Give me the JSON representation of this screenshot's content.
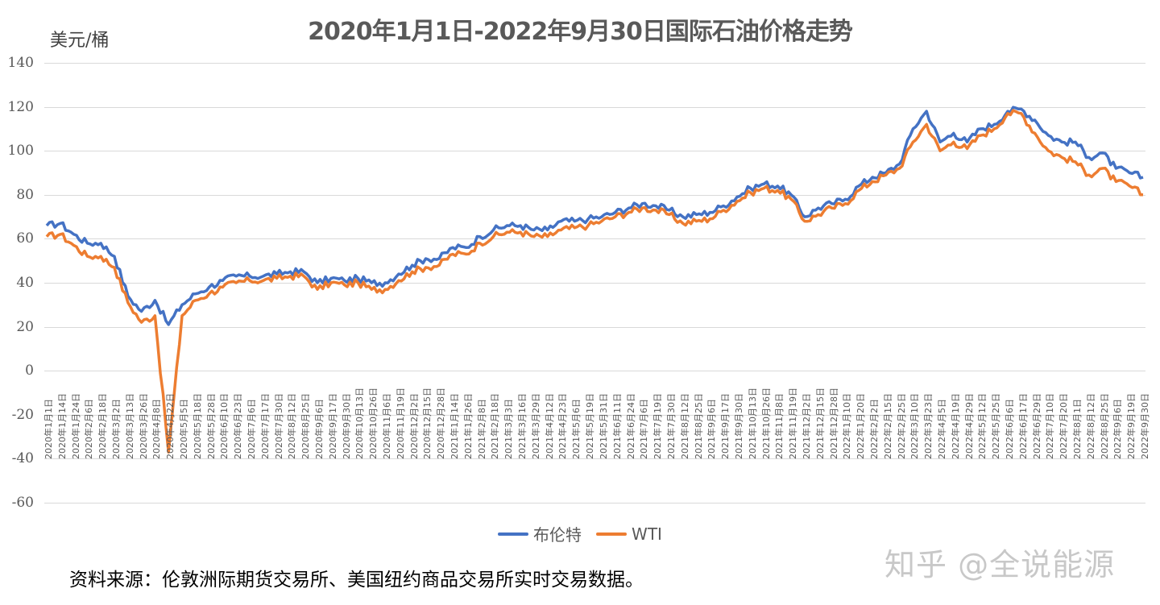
{
  "chart_data": {
    "type": "line",
    "title": "2020年1月1日-2022年9月30日国际石油价格走势",
    "ylabel": "美元/桶",
    "xlabel": "",
    "ylim": [
      -60,
      140
    ],
    "yticks": [
      140,
      120,
      100,
      80,
      60,
      40,
      20,
      0,
      -20,
      -40,
      -60
    ],
    "grid": true,
    "legend_position": "bottom",
    "categories": [
      "2020年1月1日",
      "2020年1月14日",
      "2020年1月24日",
      "2020年2月6日",
      "2020年2月18日",
      "2020年3月2日",
      "2020年3月13日",
      "2020年3月26日",
      "2020年4月8日",
      "2020年4月22日",
      "2020年5月5日",
      "2020年5月18日",
      "2020年5月28日",
      "2020年6月10日",
      "2020年6月23日",
      "2020年7月6日",
      "2020年7月17日",
      "2020年7月30日",
      "2020年8月12日",
      "2020年8月25日",
      "2020年9月6日",
      "2020年9月17日",
      "2020年9月30日",
      "2020年10月13日",
      "2020年10月26日",
      "2020年11月6日",
      "2020年11月19日",
      "2020年12月2日",
      "2020年12月15日",
      "2020年12月28日",
      "2021年1月14日",
      "2021年1月26日",
      "2021年2月8日",
      "2021年2月18日",
      "2021年3月3日",
      "2021年3月16日",
      "2021年3月29日",
      "2021年4月12日",
      "2021年4月23日",
      "2021年5月6日",
      "2021年5月19日",
      "2021年5月31日",
      "2021年6月11日",
      "2021年6月24日",
      "2021年7月6日",
      "2021年7月19日",
      "2021年7月30日",
      "2021年8月12日",
      "2021年8月25日",
      "2021年9月6日",
      "2021年9月17日",
      "2021年9月30日",
      "2021年10月13日",
      "2021年10月26日",
      "2021年11月8日",
      "2021年11月19日",
      "2021年12月2日",
      "2021年12月15日",
      "2021年12月28日",
      "2022年1月10日",
      "2022年1月20日",
      "2022年2月2日",
      "2022年2月15日",
      "2022年2月25日",
      "2022年3月10日",
      "2022年3月23日",
      "2022年4月5日",
      "2022年4月19日",
      "2022年4月29日",
      "2022年5月12日",
      "2022年5月25日",
      "2022年6月6日",
      "2022年6月17日",
      "2022年6月29日",
      "2022年7月10日",
      "2022年7月20日",
      "2022年8月1日",
      "2022年8月12日",
      "2022年8月25日",
      "2022年9月6日",
      "2022年9月19日",
      "2022年9月30日"
    ],
    "series": [
      {
        "name": "布伦特",
        "color": "#4472C4",
        "values": [
          66,
          67,
          62,
          58,
          58,
          52,
          34,
          27,
          32,
          21,
          30,
          35,
          38,
          41,
          43,
          43,
          43,
          44,
          45,
          45,
          40,
          42,
          41,
          42,
          40,
          40,
          44,
          48,
          51,
          51,
          56,
          56,
          61,
          64,
          66,
          66,
          64,
          64,
          68,
          68,
          69,
          70,
          72,
          74,
          76,
          75,
          73,
          70,
          71,
          72,
          75,
          79,
          83,
          85,
          84,
          80,
          70,
          74,
          76,
          78,
          84,
          88,
          90,
          94,
          110,
          118,
          104,
          108,
          104,
          110,
          112,
          118,
          119,
          114,
          107,
          104,
          104,
          97,
          99,
          92,
          90,
          88
        ]
      },
      {
        "name": "WTI",
        "color": "#ED7D31",
        "values": [
          61,
          62,
          57,
          52,
          52,
          47,
          31,
          22,
          25,
          -37,
          25,
          32,
          35,
          38,
          40,
          41,
          41,
          42,
          43,
          43,
          37,
          40,
          39,
          40,
          37,
          37,
          41,
          45,
          47,
          48,
          53,
          53,
          58,
          61,
          63,
          63,
          61,
          61,
          64,
          65,
          66,
          68,
          70,
          72,
          74,
          73,
          71,
          67,
          68,
          69,
          73,
          77,
          81,
          83,
          82,
          78,
          68,
          71,
          74,
          76,
          82,
          86,
          89,
          92,
          104,
          112,
          100,
          104,
          101,
          107,
          110,
          117,
          117,
          108,
          100,
          97,
          95,
          89,
          92,
          86,
          84,
          80
        ]
      }
    ]
  },
  "legend": {
    "items": [
      {
        "label": "布伦特",
        "color": "#4472C4"
      },
      {
        "label": "WTI",
        "color": "#ED7D31"
      }
    ]
  },
  "footer": {
    "source": "资料来源：伦敦洲际期货交易所、美国纽约商品交易所实时交易数据。",
    "watermark": "知乎 @全说能源"
  }
}
